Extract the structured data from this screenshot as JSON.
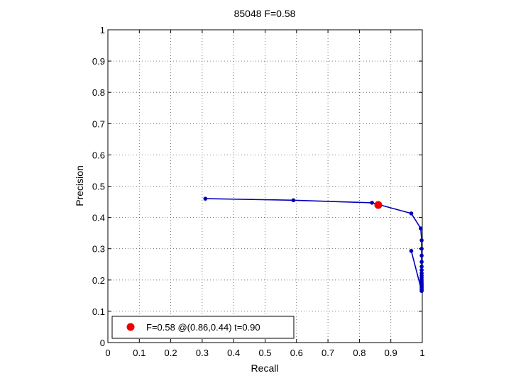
{
  "chart_data": {
    "type": "line",
    "title": "85048 F=0.58",
    "xlabel": "Recall",
    "ylabel": "Precision",
    "xlim": [
      0,
      1
    ],
    "ylim": [
      0,
      1
    ],
    "xticks": [
      "0",
      "0.1",
      "0.2",
      "0.3",
      "0.4",
      "0.5",
      "0.6",
      "0.7",
      "0.8",
      "0.9",
      "1"
    ],
    "yticks": [
      "0",
      "0.1",
      "0.2",
      "0.3",
      "0.4",
      "0.5",
      "0.6",
      "0.7",
      "0.8",
      "0.9",
      "1"
    ],
    "grid": true,
    "legend_position": "bottom-left",
    "colors": {
      "curve": "#0000bb",
      "best_point": "#ee0000",
      "axes": "#000000",
      "grid": "#555555"
    },
    "series": [
      {
        "x": [
          0.31,
          0.59,
          0.84,
          0.965,
          0.995,
          0.998,
          0.998,
          0.998,
          0.998,
          0.998,
          0.998,
          0.998,
          0.998,
          0.998,
          0.998,
          0.998,
          0.998,
          0.998,
          0.998,
          0.998,
          0.998,
          0.998,
          0.998,
          0.998,
          0.965
        ],
        "y": [
          0.46,
          0.455,
          0.447,
          0.413,
          0.365,
          0.327,
          0.3,
          0.278,
          0.258,
          0.243,
          0.232,
          0.222,
          0.214,
          0.207,
          0.2,
          0.195,
          0.19,
          0.186,
          0.182,
          0.178,
          0.175,
          0.171,
          0.168,
          0.165,
          0.293
        ]
      }
    ],
    "best_point": {
      "x": 0.86,
      "y": 0.44,
      "label": "F=0.58 @(0.86,0.44) t=0.90"
    }
  }
}
